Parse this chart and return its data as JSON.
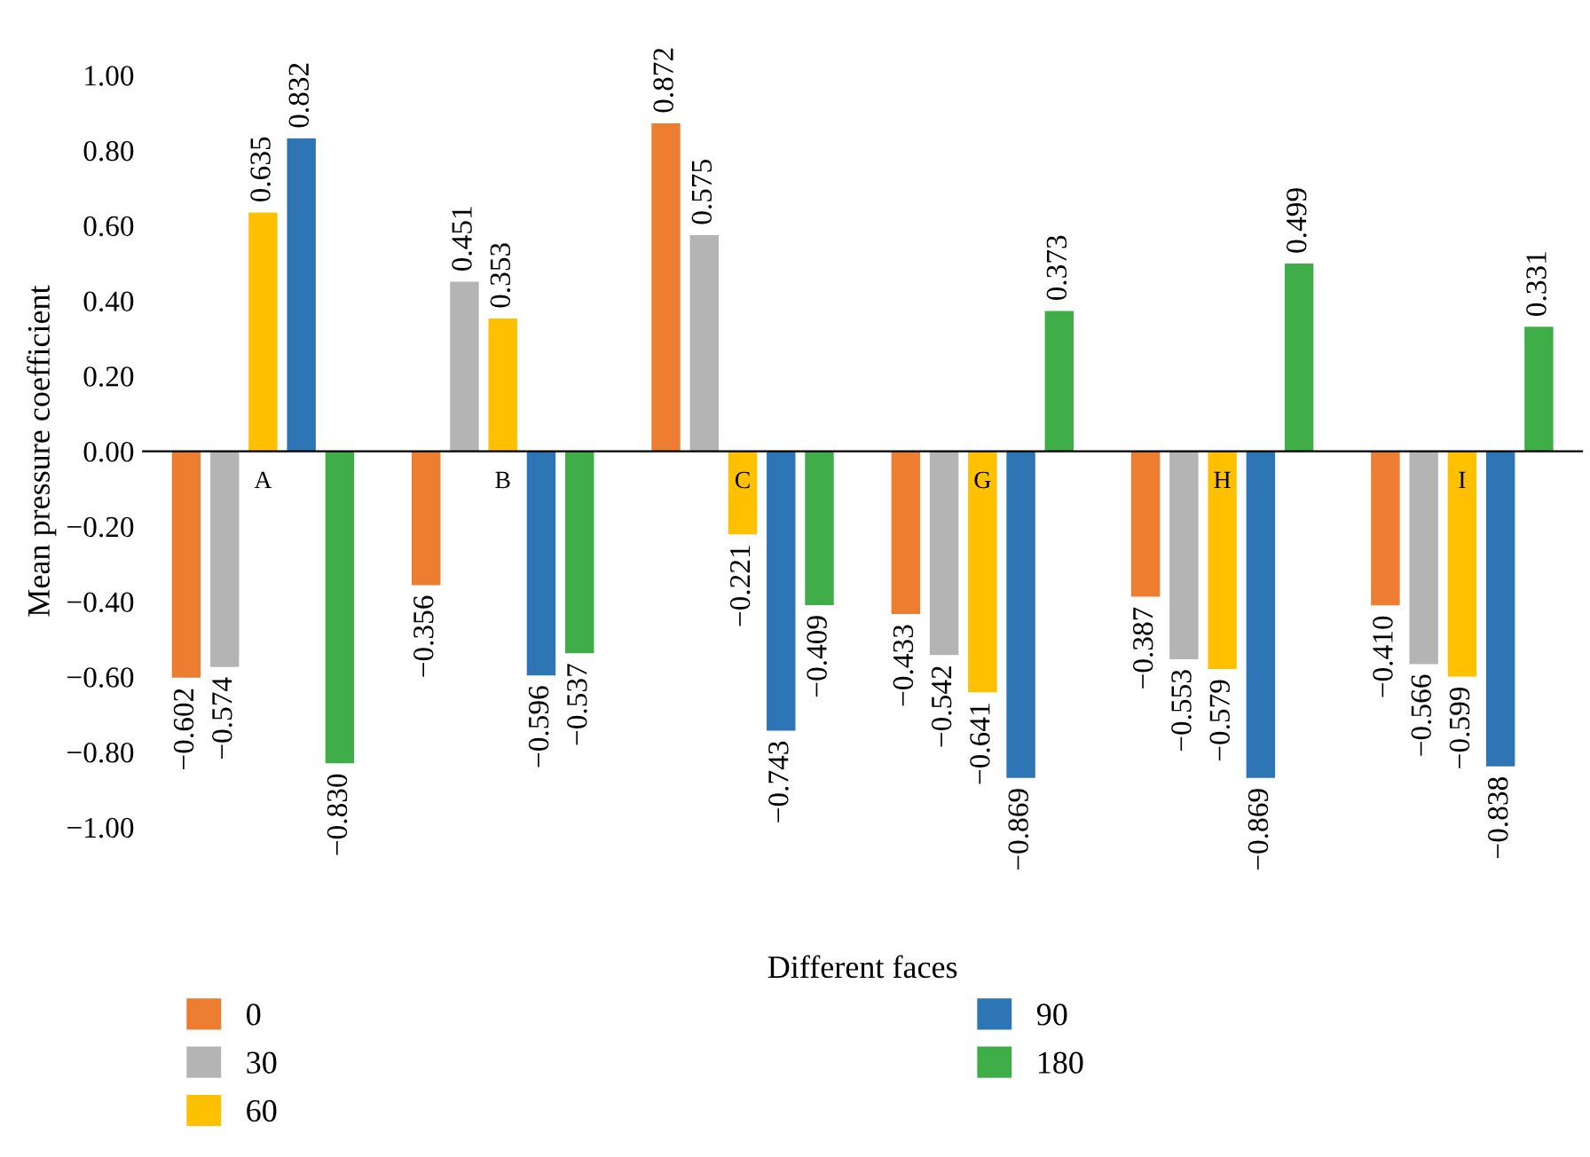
{
  "chart_data": {
    "type": "bar",
    "xlabel": "Different faces",
    "ylabel": "Mean pressure coefficient",
    "categories": [
      "A",
      "B",
      "C",
      "G",
      "H",
      "I"
    ],
    "series": [
      {
        "name": "0",
        "color": "#ed7d31",
        "values": [
          -0.602,
          -0.356,
          0.872,
          -0.433,
          -0.387,
          -0.41
        ],
        "value_labels": [
          "−0.602",
          "−0.356",
          "0.872",
          "−0.433",
          "−0.387",
          "−0.410"
        ]
      },
      {
        "name": "30",
        "color": "#b4b4b4",
        "values": [
          -0.574,
          0.451,
          0.575,
          -0.542,
          -0.553,
          -0.566
        ],
        "value_labels": [
          "−0.574",
          "0.451",
          "0.575",
          "−0.542",
          "−0.553",
          "−0.566"
        ]
      },
      {
        "name": "60",
        "color": "#ffc000",
        "values": [
          0.635,
          0.353,
          -0.221,
          -0.641,
          -0.579,
          -0.599
        ],
        "value_labels": [
          "0.635",
          "0.353",
          "−0.221",
          "−0.641",
          "−0.579",
          "−0.599"
        ]
      },
      {
        "name": "90",
        "color": "#2e75b6",
        "values": [
          0.832,
          -0.596,
          -0.743,
          -0.869,
          -0.869,
          -0.838
        ],
        "value_labels": [
          "0.832",
          "−0.596",
          "−0.743",
          "−0.869",
          "−0.869",
          "−0.838"
        ]
      },
      {
        "name": "180",
        "color": "#3fae49",
        "values": [
          -0.83,
          -0.537,
          -0.409,
          0.373,
          0.499,
          0.331
        ],
        "value_labels": [
          "−0.830",
          "−0.537",
          "−0.409",
          "0.373",
          "0.499",
          "0.331"
        ]
      }
    ],
    "ylim": [
      -1.0,
      1.0
    ],
    "yticks": [
      {
        "value": -1.0,
        "label": "−1.00"
      },
      {
        "value": -0.8,
        "label": "−0.80"
      },
      {
        "value": -0.6,
        "label": "−0.60"
      },
      {
        "value": -0.4,
        "label": "−0.40"
      },
      {
        "value": -0.2,
        "label": "−0.20"
      },
      {
        "value": 0.0,
        "label": "0.00"
      },
      {
        "value": 0.2,
        "label": "0.20"
      },
      {
        "value": 0.4,
        "label": "0.40"
      },
      {
        "value": 0.6,
        "label": "0.60"
      },
      {
        "value": 0.8,
        "label": "0.80"
      },
      {
        "value": 1.0,
        "label": "1.00"
      }
    ],
    "grid": false,
    "legend": "bottom"
  }
}
